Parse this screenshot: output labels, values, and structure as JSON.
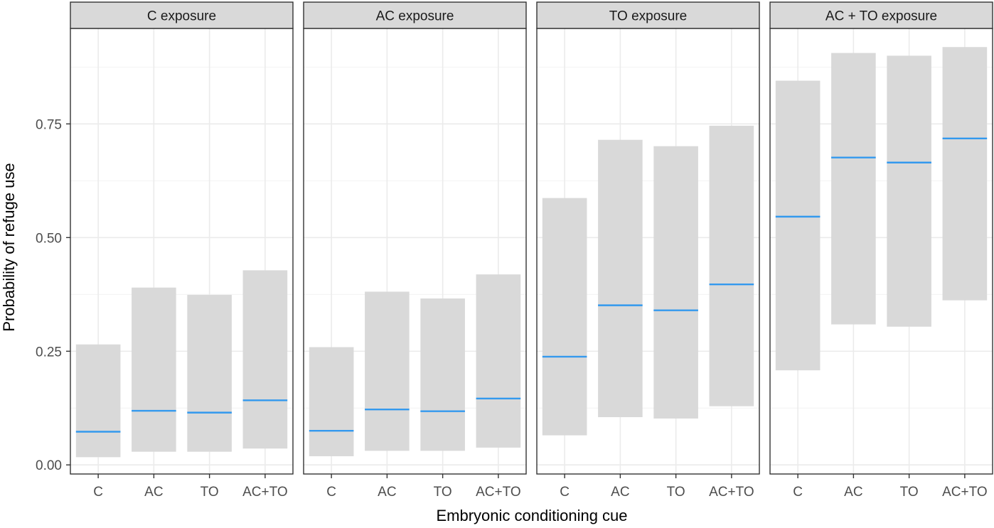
{
  "chart_data": {
    "type": "crossbar",
    "xlabel": "Embryonic conditioning cue",
    "ylabel": "Probability of  refuge use",
    "ylim": [
      -0.02,
      0.96
    ],
    "yticks": [
      0.0,
      0.25,
      0.5,
      0.75
    ],
    "ytick_labels": [
      "0.00",
      "0.25",
      "0.50",
      "0.75"
    ],
    "categories": [
      "C",
      "AC",
      "TO",
      "AC+TO"
    ],
    "grid": true,
    "colors": {
      "box_fill": "#d9d9d9",
      "estimate_line": "#3399ee",
      "grid": "#ebebeb",
      "strip_fill": "#d9d9d9",
      "border": "#333333"
    },
    "panels": [
      {
        "title": "C  exposure",
        "estimate": [
          0.073,
          0.119,
          0.115,
          0.142
        ],
        "lower": [
          0.017,
          0.029,
          0.029,
          0.036
        ],
        "upper": [
          0.265,
          0.39,
          0.374,
          0.428
        ]
      },
      {
        "title": "AC exposure",
        "estimate": [
          0.075,
          0.122,
          0.118,
          0.146
        ],
        "lower": [
          0.019,
          0.031,
          0.031,
          0.038
        ],
        "upper": [
          0.259,
          0.381,
          0.366,
          0.419
        ]
      },
      {
        "title": "TO exposure",
        "estimate": [
          0.238,
          0.351,
          0.34,
          0.397
        ],
        "lower": [
          0.065,
          0.105,
          0.102,
          0.129
        ],
        "upper": [
          0.587,
          0.715,
          0.701,
          0.746
        ]
      },
      {
        "title": "AC + TO exposure",
        "estimate": [
          0.546,
          0.676,
          0.665,
          0.718
        ],
        "lower": [
          0.208,
          0.309,
          0.304,
          0.362
        ],
        "upper": [
          0.845,
          0.906,
          0.9,
          0.919
        ]
      }
    ]
  }
}
